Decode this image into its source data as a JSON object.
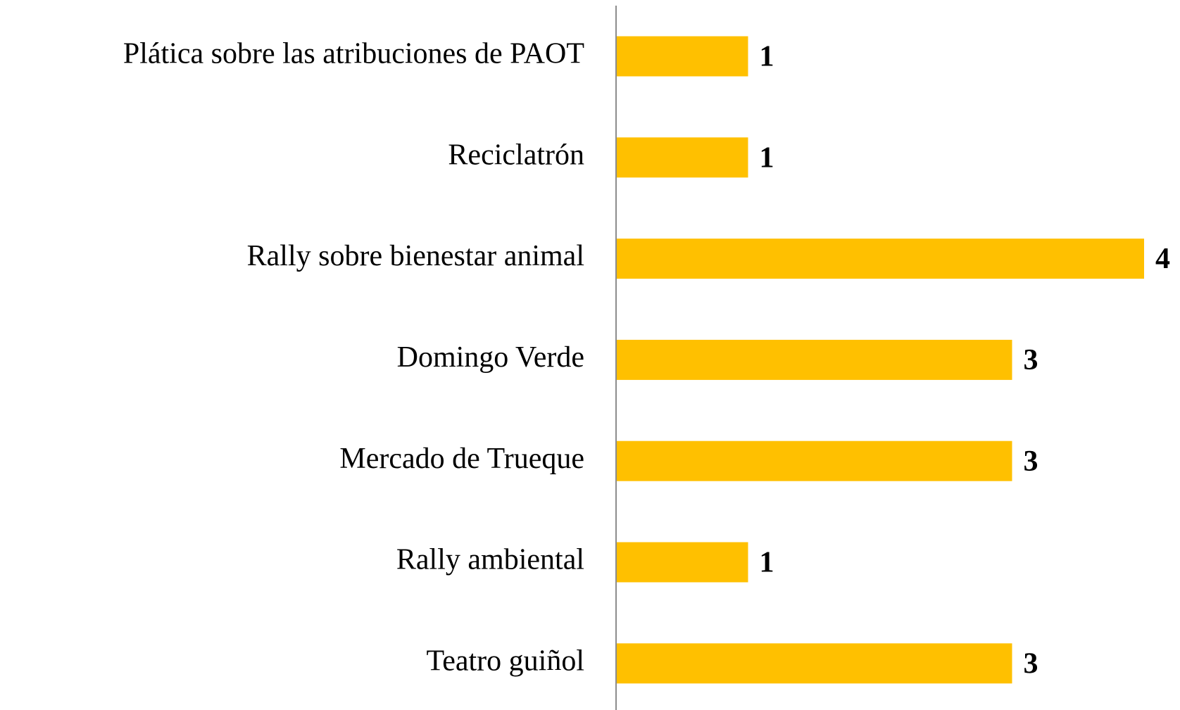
{
  "chart_data": {
    "type": "barh",
    "categories": [
      "Plática sobre las atribuciones de PAOT",
      "Reciclatrón",
      "Rally sobre bienestar animal",
      "Domingo Verde",
      "Mercado de Trueque",
      "Rally ambiental",
      "Teatro guiñol"
    ],
    "values": [
      1,
      1,
      4,
      3,
      3,
      1,
      3
    ],
    "color": "#ffc000",
    "xlim": [
      0,
      4
    ]
  }
}
